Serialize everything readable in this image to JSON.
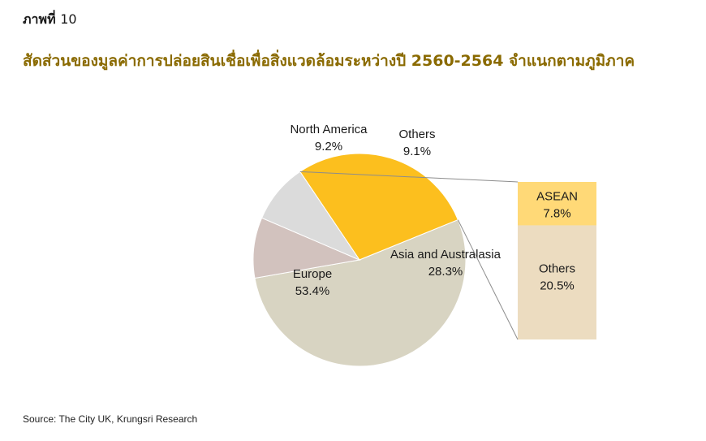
{
  "figure": {
    "label": "ภาพที่",
    "number": "10",
    "title": "สัดส่วนของมูลค่าการปล่อยสินเชื่อเพื่อสิ่งแวดล้อมระหว่างปี 2560-2564 จำแนกตามภูมิภาค",
    "source": "Source: The City UK, Krungsri Research"
  },
  "chart_data": {
    "type": "pie",
    "slices": [
      {
        "name": "Asia and Australasia",
        "value": 28.3,
        "value_label": "28.3%",
        "color": "#fcbf1e"
      },
      {
        "name": "Europe",
        "value": 53.4,
        "value_label": "53.4%",
        "color": "#d8d4c2"
      },
      {
        "name": "North America",
        "value": 9.2,
        "value_label": "9.2%",
        "color": "#d2c2be"
      },
      {
        "name": "Others",
        "value": 9.1,
        "value_label": "9.1%",
        "color": "#dbdbdb"
      }
    ],
    "breakdown_of": "Asia and Australasia",
    "breakdown": [
      {
        "name": "ASEAN",
        "value": 7.8,
        "value_label": "7.8%",
        "color": "#ffd977"
      },
      {
        "name": "Others",
        "value": 20.5,
        "value_label": "20.5%",
        "color": "#ecdcc0"
      }
    ]
  }
}
